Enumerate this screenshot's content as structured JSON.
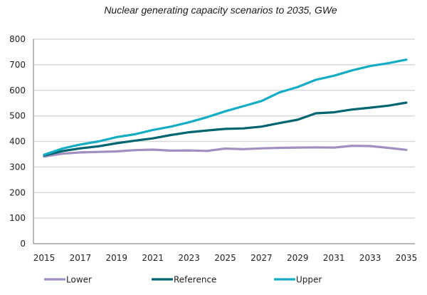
{
  "chart_data": {
    "type": "line",
    "title": "Nuclear generating capacity scenarios to 2035, GWe",
    "xlabel": "",
    "ylabel": "",
    "x": [
      2015,
      2016,
      2017,
      2018,
      2019,
      2020,
      2021,
      2022,
      2023,
      2024,
      2025,
      2026,
      2027,
      2028,
      2029,
      2030,
      2031,
      2032,
      2033,
      2034,
      2035
    ],
    "x_tick_labels": [
      "2015",
      "2017",
      "2019",
      "2021",
      "2023",
      "2025",
      "2027",
      "2029",
      "2031",
      "2033",
      "2035"
    ],
    "y_tick_labels": [
      "0",
      "100",
      "200",
      "300",
      "400",
      "500",
      "600",
      "700",
      "800"
    ],
    "ylim": [
      0,
      800
    ],
    "xlim": [
      2015,
      2035
    ],
    "grid": true,
    "legend_position": "bottom",
    "series": [
      {
        "name": "Lower",
        "color": "#a08fc0",
        "values": [
          341,
          352,
          357,
          359,
          361,
          366,
          368,
          364,
          365,
          363,
          372,
          370,
          373,
          375,
          376,
          377,
          376,
          383,
          382,
          375,
          367
        ]
      },
      {
        "name": "Reference",
        "color": "#006570",
        "values": [
          345,
          362,
          373,
          381,
          393,
          403,
          412,
          425,
          436,
          443,
          449,
          451,
          458,
          472,
          485,
          510,
          514,
          525,
          532,
          540,
          552
        ]
      },
      {
        "name": "Upper",
        "color": "#14adc4",
        "values": [
          348,
          372,
          388,
          400,
          417,
          428,
          445,
          458,
          475,
          495,
          518,
          538,
          558,
          592,
          613,
          641,
          657,
          678,
          695,
          706,
          720
        ]
      }
    ]
  }
}
